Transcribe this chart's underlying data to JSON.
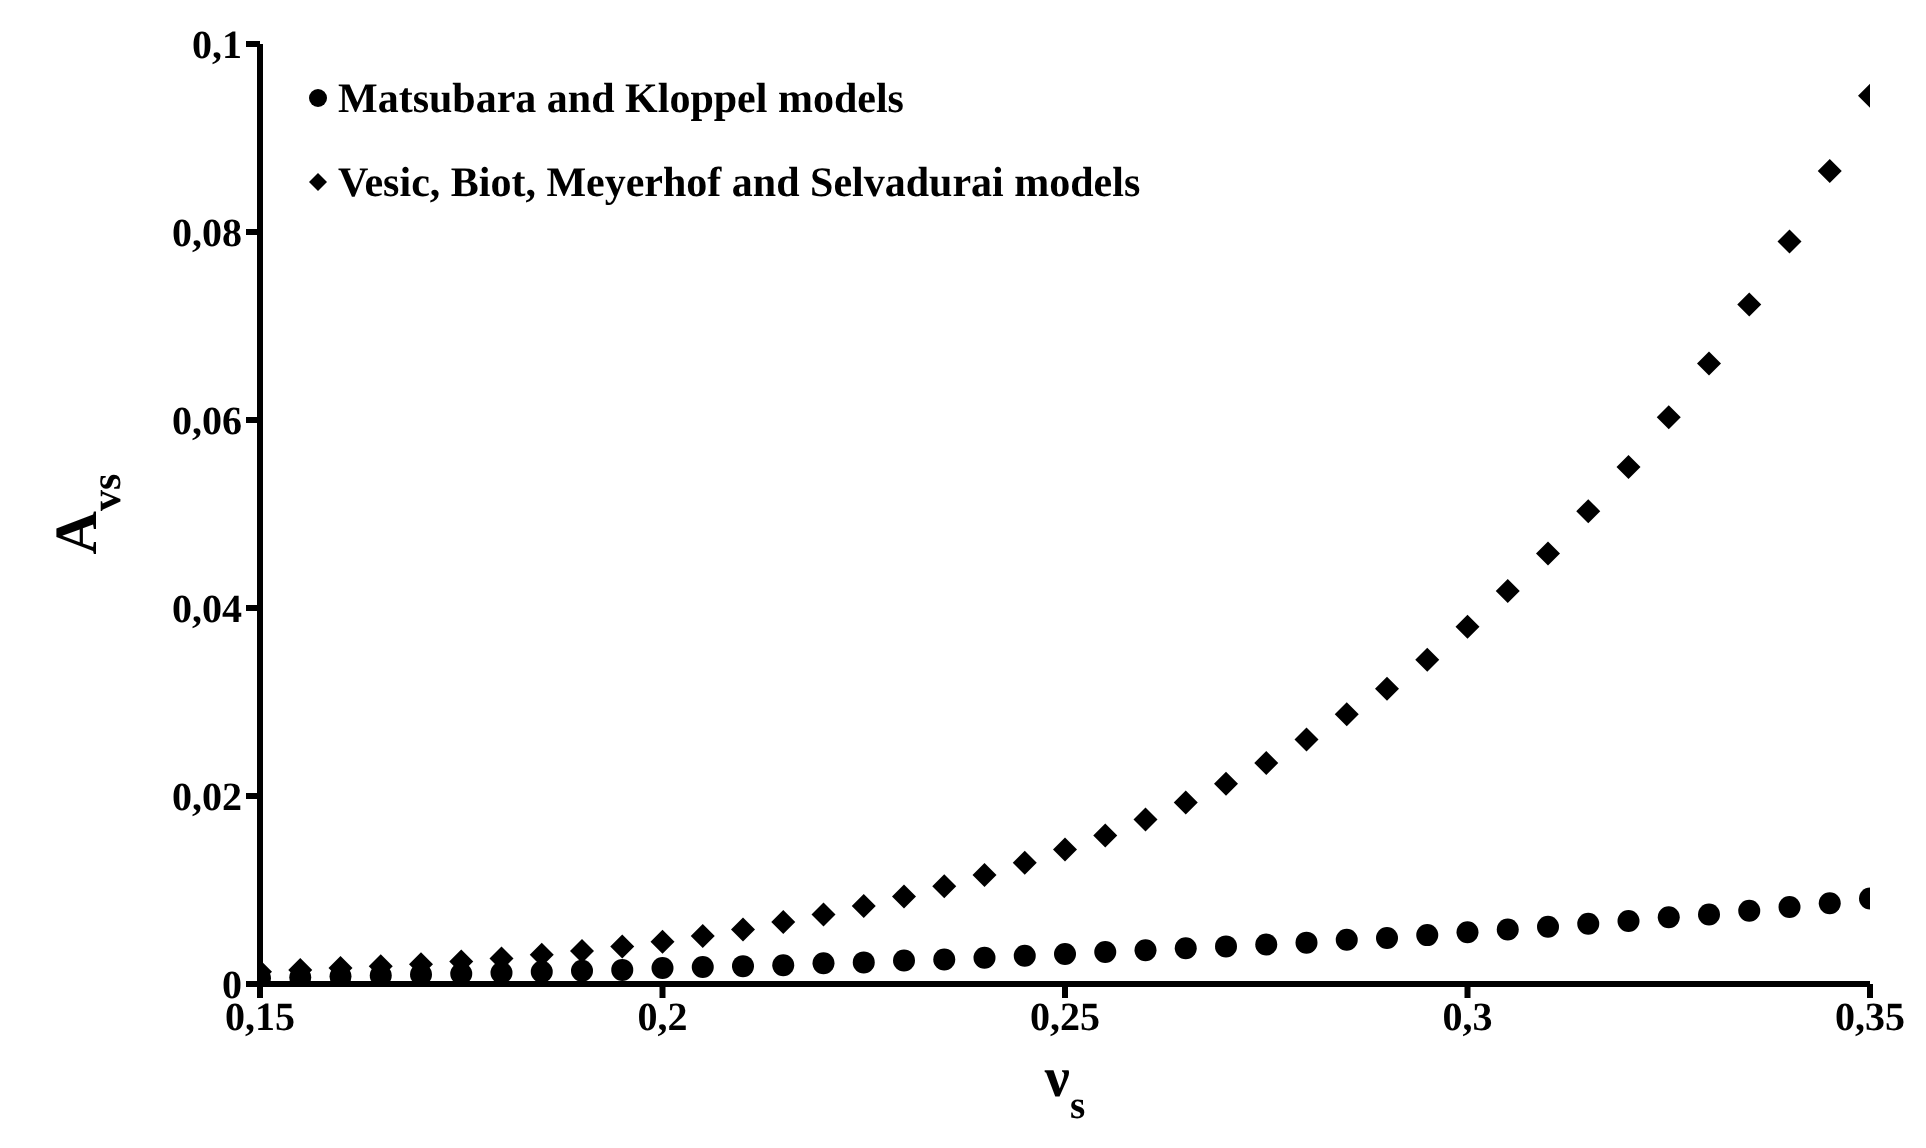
{
  "chart_data": {
    "type": "scatter",
    "xlabel": "ν$_{s}$",
    "ylabel": "A$_{vs}$",
    "x": [
      0.15,
      0.155,
      0.16,
      0.165,
      0.17,
      0.175,
      0.18,
      0.185,
      0.19,
      0.195,
      0.2,
      0.205,
      0.21,
      0.215,
      0.22,
      0.225,
      0.23,
      0.235,
      0.24,
      0.245,
      0.25,
      0.255,
      0.26,
      0.265,
      0.27,
      0.275,
      0.28,
      0.285,
      0.29,
      0.295,
      0.3,
      0.305,
      0.31,
      0.315,
      0.32,
      0.325,
      0.33,
      0.335,
      0.34,
      0.345,
      0.35
    ],
    "series": [
      {
        "name": "Matsubara and Kloppel models",
        "color": "#000000",
        "marker": "circle",
        "values": [
          0.0006,
          0.0007,
          0.0008,
          0.0009,
          0.001,
          0.0011,
          0.0012,
          0.0013,
          0.0014,
          0.0015,
          0.0017,
          0.0018,
          0.0019,
          0.002,
          0.0022,
          0.0023,
          0.0025,
          0.0026,
          0.0028,
          0.003,
          0.0032,
          0.0034,
          0.0036,
          0.0038,
          0.004,
          0.0042,
          0.0044,
          0.0047,
          0.0049,
          0.0052,
          0.0055,
          0.0058,
          0.0061,
          0.0064,
          0.0067,
          0.0071,
          0.0074,
          0.0078,
          0.0082,
          0.0086,
          0.0091
        ]
      },
      {
        "name": "Vesic, Biot, Meyerhof and Selvadurai models",
        "color": "#000000",
        "marker": "diamond",
        "values": [
          0.0013,
          0.0015,
          0.0017,
          0.0019,
          0.0021,
          0.0024,
          0.0027,
          0.0031,
          0.0035,
          0.004,
          0.0045,
          0.0051,
          0.0058,
          0.0066,
          0.0074,
          0.0083,
          0.0093,
          0.0104,
          0.0116,
          0.0129,
          0.0143,
          0.0158,
          0.0175,
          0.0193,
          0.0213,
          0.0235,
          0.026,
          0.0287,
          0.0314,
          0.0345,
          0.038,
          0.0418,
          0.0458,
          0.0503,
          0.055,
          0.0603,
          0.066,
          0.0723,
          0.079,
          0.0865,
          0.0945
        ]
      }
    ],
    "xlim": [
      0.15,
      0.35
    ],
    "xticks": [
      {
        "value": 0.15,
        "label": "0,15"
      },
      {
        "value": 0.2,
        "label": "0,2"
      },
      {
        "value": 0.25,
        "label": "0,25"
      },
      {
        "value": 0.3,
        "label": "0,3"
      },
      {
        "value": 0.35,
        "label": "0,35"
      }
    ],
    "ylim": [
      0,
      0.1
    ],
    "yticks": [
      {
        "value": 0,
        "label": "0"
      },
      {
        "value": 0.02,
        "label": "0,02"
      },
      {
        "value": 0.04,
        "label": "0,04"
      },
      {
        "value": 0.06,
        "label": "0,06"
      },
      {
        "value": 0.08,
        "label": "0,08"
      },
      {
        "value": 0.1,
        "label": "0,1"
      }
    ],
    "grid": false,
    "legend": "top left"
  }
}
